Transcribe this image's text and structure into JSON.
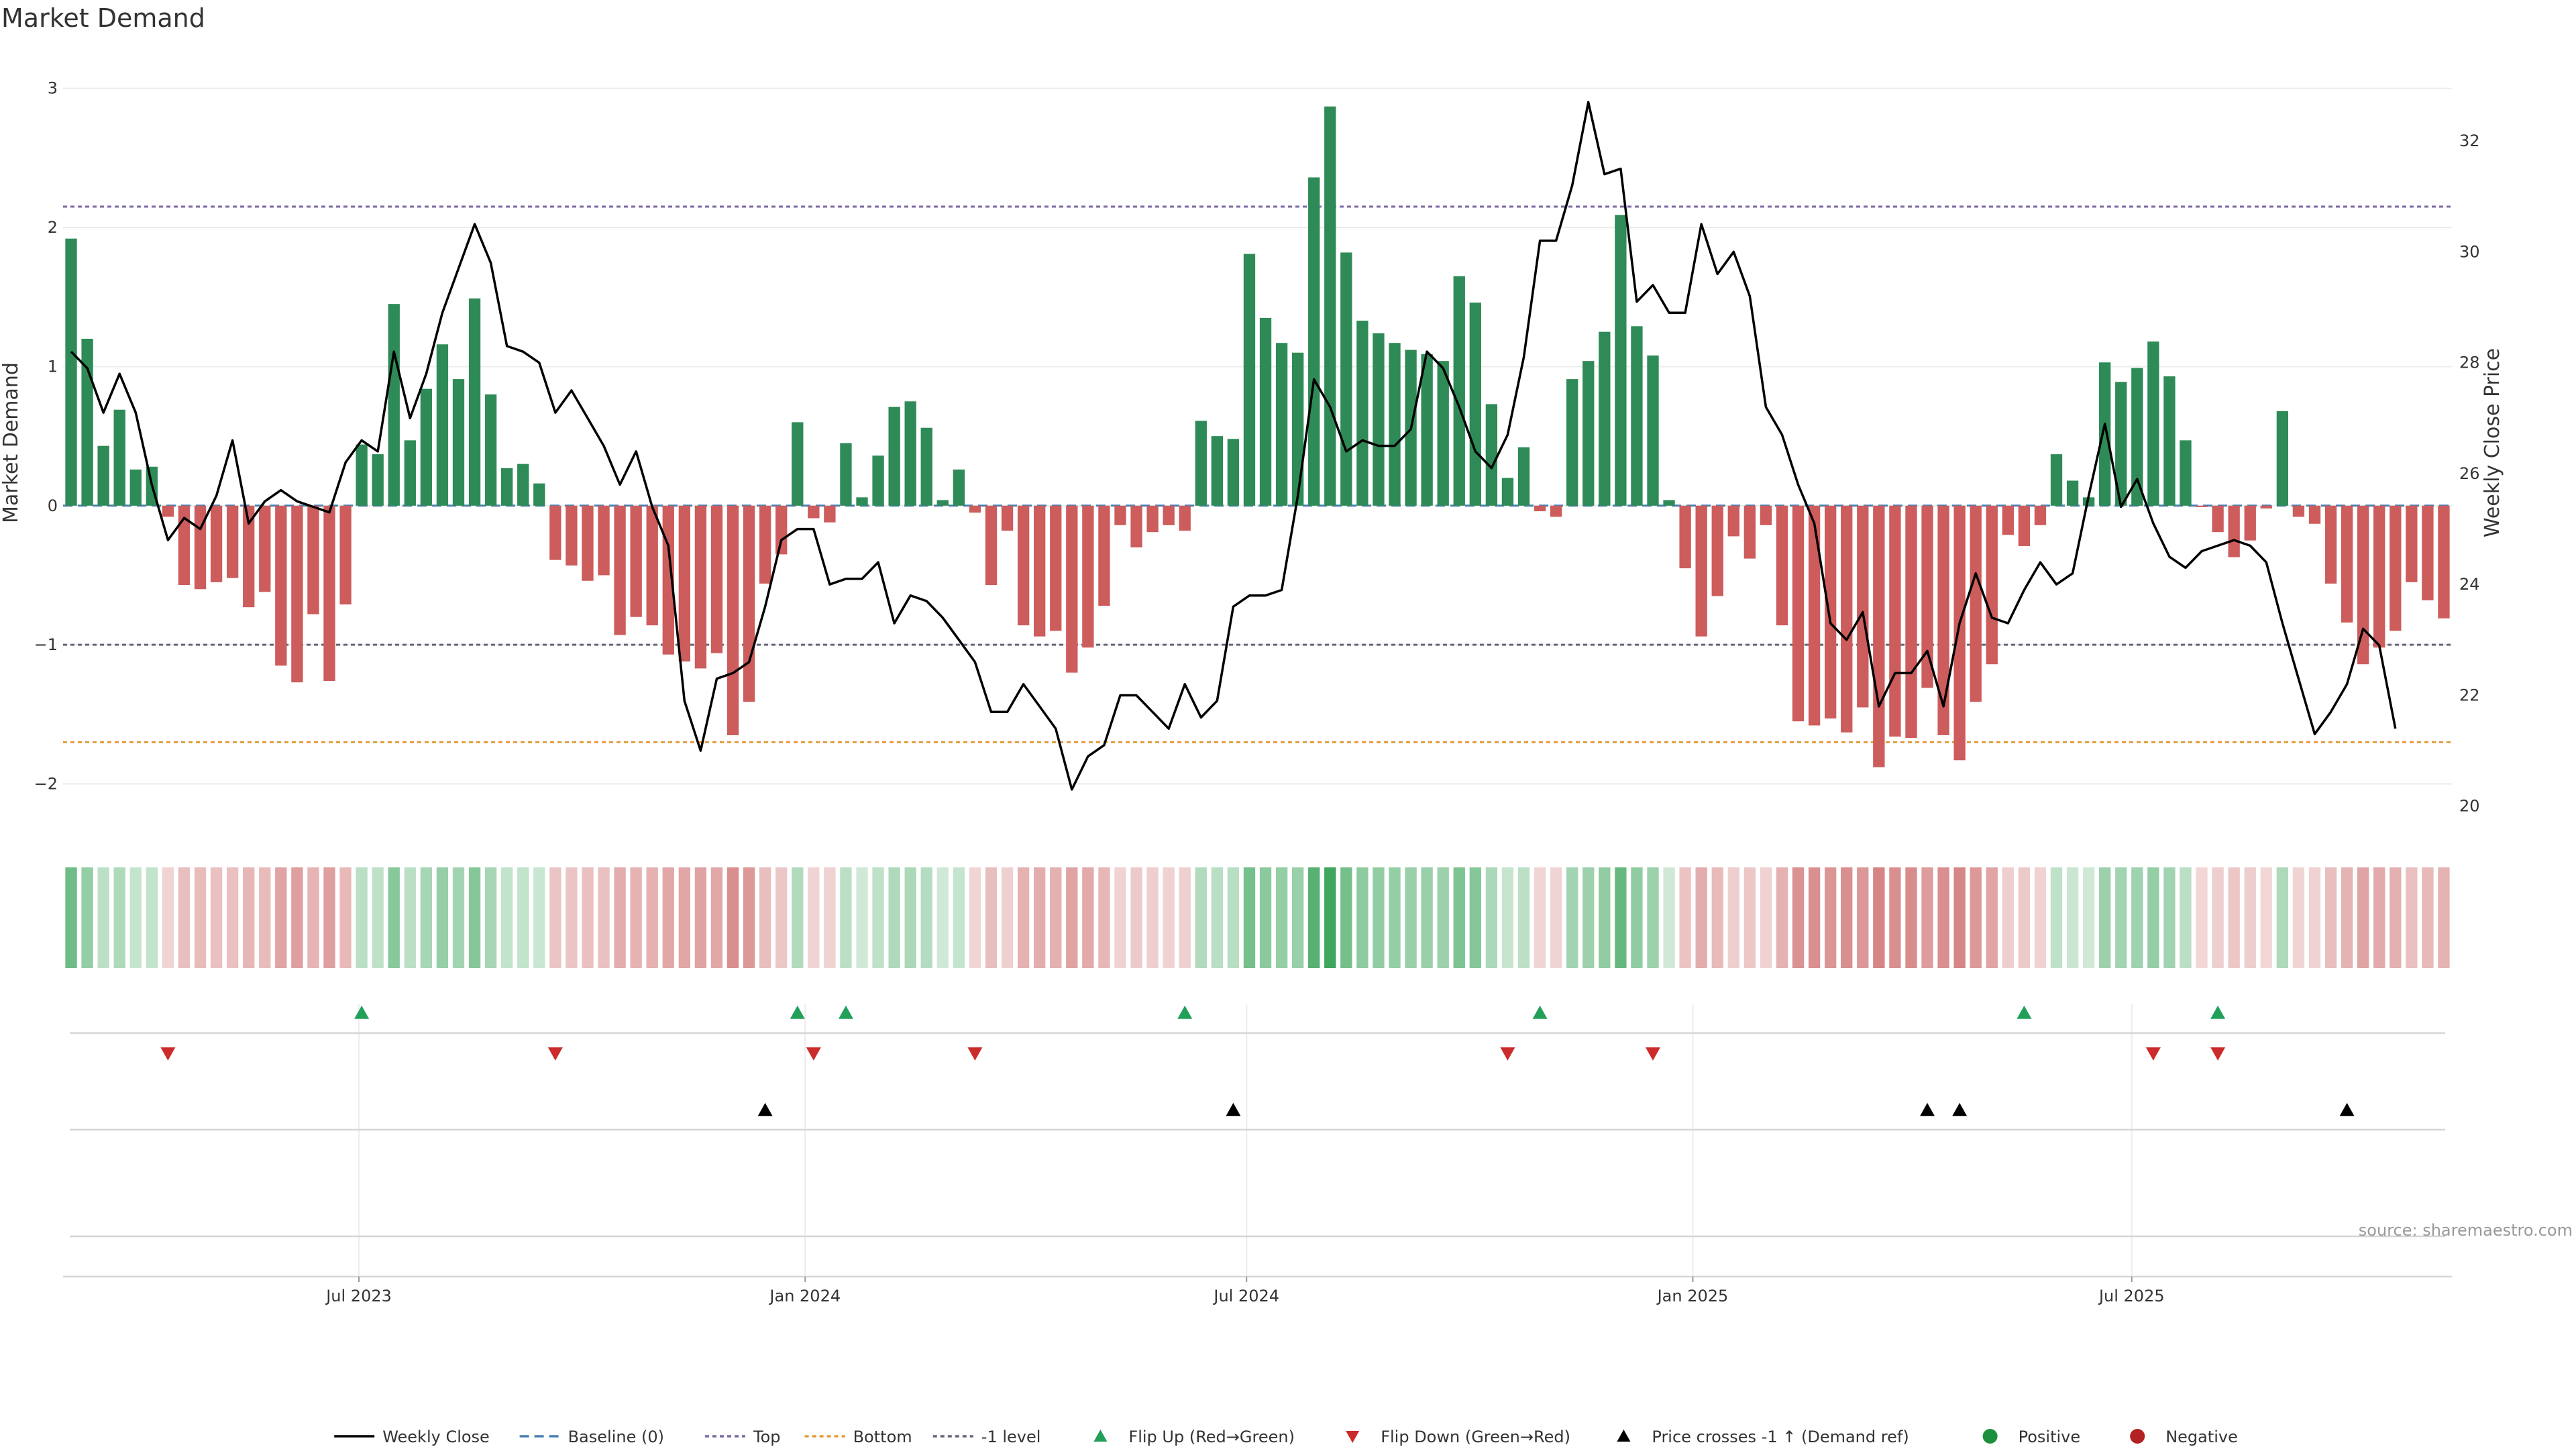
{
  "chart_data": {
    "type": "bar",
    "title": "Market Demand",
    "ylabel": "Market Demand",
    "y2label": "Weekly Close Price",
    "ylim": [
      -2.2,
      3.1
    ],
    "y2lim": [
      19.9,
      33.2
    ],
    "yticks": [
      3,
      2,
      1,
      0,
      -1,
      -2
    ],
    "ytick_labels": [
      "3",
      "2",
      "1",
      "0",
      "−1",
      "−2"
    ],
    "y2ticks": [
      32,
      30,
      28,
      26,
      24,
      22,
      20
    ],
    "y2tick_labels": [
      "32",
      "30",
      "28",
      "26",
      "24",
      "22",
      "20"
    ],
    "x_start_date": "2023-03-01",
    "x_end_date": "2025-11-10",
    "x_ticks": [
      {
        "date": "2023-07-01",
        "label": "Jul 2023"
      },
      {
        "date": "2024-01-01",
        "label": "Jan 2024"
      },
      {
        "date": "2024-07-01",
        "label": "Jul 2024"
      },
      {
        "date": "2025-01-01",
        "label": "Jan 2025"
      },
      {
        "date": "2025-07-01",
        "label": "Jul 2025"
      }
    ],
    "reference_lines": [
      {
        "name": "Top",
        "value": 2.15,
        "color": "#7b6aa6"
      },
      {
        "name": "Bottom",
        "value": -1.7,
        "color": "#e69b3a"
      },
      {
        "name": "-1 level",
        "value": -1.0,
        "color": "#666677"
      }
    ],
    "series": [
      {
        "name": "Market Demand",
        "start_week": 0,
        "values": [
          1.92,
          1.2,
          0.43,
          0.69,
          0.26,
          0.28,
          -0.08,
          -0.57,
          -0.6,
          -0.55,
          -0.52,
          -0.73,
          -0.62,
          -1.15,
          -1.27,
          -0.78,
          -1.26,
          -0.71,
          0.44,
          0.37,
          1.45,
          0.47,
          0.84,
          1.16,
          0.91,
          1.49,
          0.8,
          0.27,
          0.3,
          0.16,
          -0.39,
          -0.43,
          -0.54,
          -0.5,
          -0.93,
          -0.8,
          -0.86,
          -1.07,
          -1.12,
          -1.17,
          -1.06,
          -1.65,
          -1.41,
          -0.56,
          -0.35,
          0.6,
          -0.09,
          -0.12,
          0.45,
          0.06,
          0.36,
          0.71,
          0.75,
          0.56,
          0.04,
          0.26,
          -0.05,
          -0.57,
          -0.18,
          -0.86,
          -0.94,
          -0.9,
          -1.2,
          -1.02,
          -0.72,
          -0.14,
          -0.3,
          -0.19,
          -0.14,
          -0.18,
          0.61,
          0.5,
          0.48,
          1.81,
          1.35,
          1.17,
          1.1,
          2.36,
          2.87,
          1.82,
          1.33,
          1.24,
          1.17,
          1.12,
          1.09,
          1.04,
          1.65,
          1.46,
          0.73,
          0.2,
          0.42,
          -0.04,
          -0.08,
          0.91,
          1.04,
          1.25,
          2.09,
          1.29,
          1.08,
          0.04,
          -0.45,
          -0.94,
          -0.65,
          -0.22,
          -0.38,
          -0.14,
          -0.86,
          -1.55,
          -1.58,
          -1.53,
          -1.63,
          -1.45,
          -1.88,
          -1.66,
          -1.67,
          -1.31,
          -1.65,
          -1.83,
          -1.41,
          -1.14,
          -0.21,
          -0.29,
          -0.14,
          0.37,
          0.18,
          0.06,
          1.03,
          0.89,
          0.99,
          1.18,
          0.93,
          0.47,
          -0.01,
          -0.19,
          -0.37,
          -0.25,
          -0.02,
          0.68,
          -0.08,
          -0.13,
          -0.56,
          -0.84,
          -1.14,
          -1.02,
          -0.9,
          -0.55,
          -0.68,
          -0.81
        ]
      },
      {
        "name": "Weekly Close",
        "start_week": 0,
        "values": [
          28.2,
          27.9,
          27.1,
          27.8,
          27.1,
          25.8,
          24.8,
          25.2,
          25.0,
          25.6,
          26.6,
          25.1,
          25.5,
          25.7,
          25.5,
          25.4,
          25.3,
          26.2,
          26.6,
          26.4,
          28.2,
          27.0,
          27.8,
          28.9,
          29.7,
          30.5,
          29.8,
          28.3,
          28.2,
          28.0,
          27.1,
          27.5,
          27.0,
          26.5,
          25.8,
          26.4,
          25.4,
          24.7,
          21.9,
          21.0,
          22.3,
          22.4,
          22.6,
          23.6,
          24.8,
          25.0,
          25.0,
          24.0,
          24.1,
          24.1,
          24.4,
          23.3,
          23.8,
          23.7,
          23.4,
          23.0,
          22.6,
          21.7,
          21.7,
          22.2,
          21.8,
          21.4,
          20.3,
          20.9,
          21.1,
          22.0,
          22.0,
          21.7,
          21.4,
          22.2,
          21.6,
          21.9,
          23.6,
          23.8,
          23.8,
          23.9,
          25.6,
          27.7,
          27.2,
          26.4,
          26.6,
          26.5,
          26.5,
          26.8,
          28.2,
          27.9,
          27.2,
          26.4,
          26.1,
          26.7,
          28.1,
          30.2,
          30.2,
          31.2,
          32.7,
          31.4,
          31.5,
          29.1,
          29.4,
          28.9,
          28.9,
          30.5,
          29.6,
          30.0,
          29.2,
          27.2,
          26.7,
          25.8,
          25.1,
          23.3,
          23.0,
          23.5,
          21.8,
          22.4,
          22.4,
          22.8,
          21.8,
          23.3,
          24.2,
          23.4,
          23.3,
          23.9,
          24.4,
          24.0,
          24.2,
          25.6,
          26.9,
          25.4,
          25.9,
          25.1,
          24.5,
          24.3,
          24.6,
          24.7,
          24.8,
          24.7,
          24.4,
          23.3,
          22.3,
          21.3,
          21.7,
          22.2,
          23.2,
          22.9,
          21.4
        ]
      }
    ],
    "flip_up_weeks": [
      18,
      45,
      48,
      69,
      91,
      121,
      133
    ],
    "flip_down_weeks": [
      6,
      30,
      46,
      56,
      89,
      98,
      129,
      133
    ],
    "price_cross_weeks": [
      43,
      72,
      115,
      117,
      141
    ],
    "legend": {
      "placement": "bottom",
      "entries": [
        {
          "label": "Weekly Close",
          "style": "line",
          "color": "#000000"
        },
        {
          "label": "Baseline (0)",
          "style": "dashed",
          "color": "#4a7fb0"
        },
        {
          "label": "Top",
          "style": "dotted",
          "color": "#7b6aa6"
        },
        {
          "label": "Bottom",
          "style": "dotted",
          "color": "#e69b3a"
        },
        {
          "label": "-1 level",
          "style": "dotted",
          "color": "#666677"
        },
        {
          "label": "Flip Up (Red→Green)",
          "style": "tri-up",
          "color": "#22a05a"
        },
        {
          "label": "Flip Down (Green→Red)",
          "style": "tri-down",
          "color": "#cc2b2b"
        },
        {
          "label": "Price crosses -1 ↑ (Demand ref)",
          "style": "tri-up",
          "color": "#000000"
        },
        {
          "label": "Positive",
          "style": "dot",
          "color": "#1e8f3c"
        },
        {
          "label": "Negative",
          "style": "dot",
          "color": "#b22222"
        }
      ]
    },
    "colors": {
      "positive_bar": "#2e8b57",
      "negative_bar": "#cd5c5c",
      "price_line": "#000000",
      "heat_positive": "#2e9e4f",
      "heat_negative": "#c24a4a"
    }
  },
  "source_text": "source: sharemaestro.com"
}
